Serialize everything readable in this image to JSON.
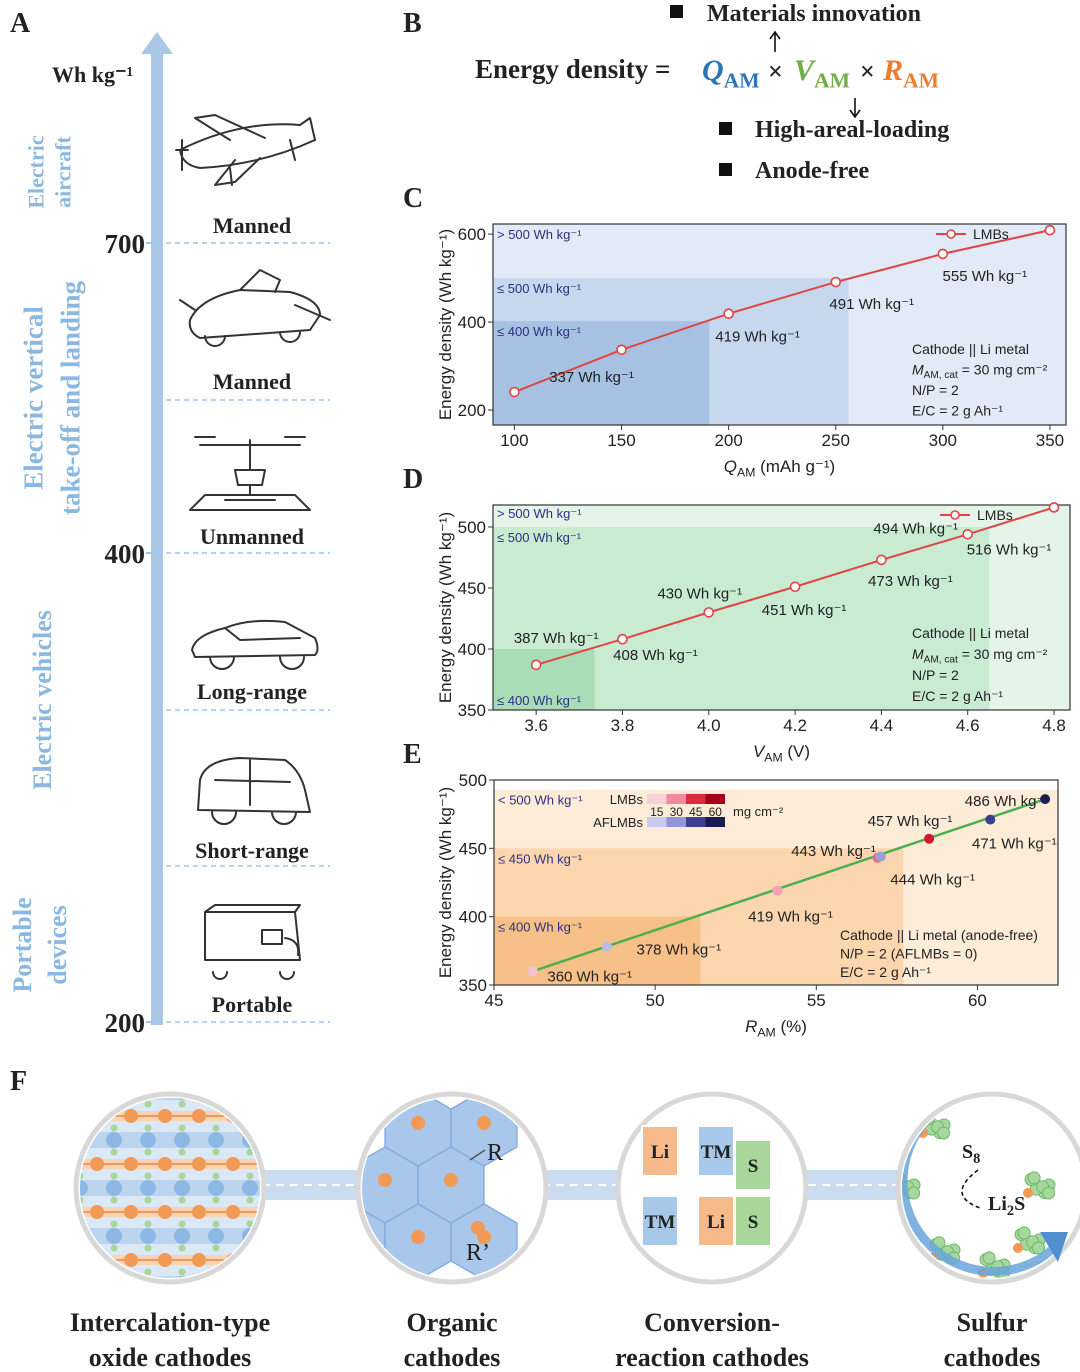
{
  "panel_a": {
    "label": "A",
    "unit": "Wh kg⁻¹",
    "ticks": [
      700,
      400,
      200
    ],
    "groups": [
      [
        "Electric",
        "aircraft"
      ],
      [
        "Electric vertical",
        "take-off and landing"
      ],
      [
        "Electric vehicles"
      ],
      [
        "Portable",
        "devices"
      ]
    ],
    "items": [
      "Manned",
      "Manned",
      "Unmanned",
      "Long-range",
      "Short-range",
      "Portable"
    ]
  },
  "panel_b": {
    "label": "B",
    "above": "Materials innovation",
    "lhs": "Energy density =",
    "operator": "×",
    "terms": [
      {
        "symbol": "Q",
        "sub": "AM",
        "color": "#2e75b6"
      },
      {
        "symbol": "V",
        "sub": "AM",
        "color": "#70ad47"
      },
      {
        "symbol": "R",
        "sub": "AM",
        "color": "#ed7d31"
      }
    ],
    "below": [
      "High-areal-loading",
      "Anode-free"
    ]
  },
  "chart_data": [
    {
      "type": "line",
      "panel": "C",
      "x_label": {
        "symbol": "Q",
        "sub": "AM",
        "unit": " (mAh g⁻¹)"
      },
      "y_label": "Energy density (Wh kg⁻¹)",
      "x": [
        100,
        150,
        200,
        250,
        300,
        350
      ],
      "series": [
        {
          "name": "LMBs",
          "color": "#e04545",
          "values": [
            241,
            337,
            419,
            491,
            555,
            609
          ],
          "value_labels": [
            null,
            "337 Wh kg⁻¹",
            "419 Wh kg⁻¹",
            "491 Wh kg⁻¹",
            "555 Wh kg⁻¹",
            null
          ]
        }
      ],
      "xlim": [
        90,
        357.5
      ],
      "xticks": [
        100,
        150,
        200,
        250,
        300,
        350
      ],
      "ylim": [
        166,
        623
      ],
      "yticks": [
        200,
        400,
        600
      ],
      "regions": [
        {
          "label": "> 500 Wh kg⁻¹",
          "color": "#e2eaf7"
        },
        {
          "label": "≤ 500 Wh kg⁻¹",
          "xmax": 256,
          "ymax": 500,
          "color": "#c6d7ee"
        },
        {
          "label": "≤ 400 Wh kg⁻¹",
          "xmax": 191,
          "ymax": 402,
          "color": "#a6c1e2"
        }
      ],
      "legend": "upper right",
      "annotations": [
        "Cathode || Li metal",
        {
          "symbol": "M",
          "sub": "AM, cat",
          "text": " = 30 mg cm⁻²"
        },
        "N/P = 2",
        "E/C = 2 g Ah⁻¹"
      ]
    },
    {
      "type": "line",
      "panel": "D",
      "x_label": {
        "symbol": "V",
        "sub": "AM",
        "unit": " (V)"
      },
      "y_label": "Energy density (Wh kg⁻¹)",
      "x": [
        3.6,
        3.8,
        4.0,
        4.2,
        4.4,
        4.6,
        4.8
      ],
      "series": [
        {
          "name": "LMBs",
          "color": "#e04545",
          "values": [
            387,
            408,
            430,
            451,
            473,
            494,
            516
          ],
          "value_labels": [
            "387 Wh kg⁻¹",
            "408 Wh kg⁻¹",
            "430 Wh kg⁻¹",
            "451 Wh kg⁻¹",
            "473 Wh kg⁻¹",
            "494 Wh kg⁻¹",
            "516 Wh kg⁻¹"
          ]
        }
      ],
      "xlim": [
        3.5,
        4.837
      ],
      "xticks": [
        {
          "value": 3.6,
          "label": "3.6"
        },
        {
          "value": 3.8,
          "label": "3.8"
        },
        {
          "value": 4.0,
          "label": "4.0"
        },
        {
          "value": 4.2,
          "label": "4.2"
        },
        {
          "value": 4.4,
          "label": "4.4"
        },
        {
          "value": 4.6,
          "label": "4.6"
        },
        {
          "value": 4.8,
          "label": "4.8"
        }
      ],
      "ylim": [
        350,
        518
      ],
      "yticks": [
        350,
        400,
        450,
        500
      ],
      "regions": [
        {
          "label": "> 500 Wh kg⁻¹",
          "color": "#e4f4e8"
        },
        {
          "label": "≤ 500 Wh kg⁻¹",
          "xmax": 4.65,
          "ymax": 500,
          "color": "#c8ebd2"
        },
        {
          "label": "≤ 400 Wh kg⁻¹",
          "xmax": 3.735,
          "ymax": 400,
          "color": "#a8ddb7"
        }
      ],
      "legend": "upper right",
      "annotations": [
        "Cathode || Li metal",
        {
          "symbol": "M",
          "sub": "AM, cat",
          "text": " = 30 mg cm⁻²"
        },
        "N/P = 2",
        "E/C = 2 g Ah⁻¹"
      ]
    },
    {
      "type": "scatter",
      "panel": "E",
      "x_label": {
        "symbol": "R",
        "sub": "AM",
        "unit": " (%)"
      },
      "y_label": "Energy density (Wh kg⁻¹)",
      "series": [
        {
          "name": "LMBs",
          "x": [
            46.2,
            53.8,
            56.9,
            58.5
          ],
          "values": [
            360,
            419,
            443,
            457
          ],
          "colors": [
            "#f6c3cf",
            "#f3a3b4",
            "#ea6f86",
            "#d4172f"
          ],
          "scale_colors": [
            "#f8d0d8",
            "#f08a9c",
            "#e0283f",
            "#a3001a"
          ],
          "value_labels": [
            "360 Wh kg⁻¹",
            "419 Wh kg⁻¹",
            "443 Wh kg⁻¹",
            "457 Wh kg⁻¹"
          ]
        },
        {
          "name": "AFLMBs",
          "x": [
            48.5,
            57.0,
            60.4,
            62.1
          ],
          "values": [
            378,
            444,
            471,
            486
          ],
          "colors": [
            "#b9bde6",
            "#9a9fd8",
            "#3b3f8f",
            "#1c1f5a"
          ],
          "scale_colors": [
            "#c8cbee",
            "#8f95d6",
            "#3c418f",
            "#191c52"
          ],
          "value_labels": [
            "378 Wh kg⁻¹",
            "444 Wh kg⁻¹",
            "471 Wh kg⁻¹",
            "486 Wh kg⁻¹"
          ]
        }
      ],
      "trend": {
        "color": "#4caf50",
        "x": [
          46.2,
          62.1
        ],
        "values": [
          360,
          486
        ]
      },
      "xlim": [
        45,
        62.5
      ],
      "xticks": [
        45,
        50,
        55,
        60
      ],
      "ylim": [
        350,
        500
      ],
      "yticks": [
        350,
        400,
        450,
        500
      ],
      "regions": [
        {
          "label": "< 500 Wh kg⁻¹",
          "ymax": 493,
          "color": "#fdecd8"
        },
        {
          "label": "≤ 450 Wh kg⁻¹",
          "xmax": 57.7,
          "ymax": 450,
          "color": "#fbd6ae"
        },
        {
          "label": "≤ 400 Wh kg⁻¹",
          "xmax": 51.4,
          "ymax": 400,
          "color": "#f8c089"
        }
      ],
      "legend": {
        "loadings": [
          15,
          30,
          45,
          60
        ],
        "unit": "mg cm⁻²"
      },
      "annotations": [
        "Cathode || Li metal (anode-free)",
        "N/P = 2 (AFLMBs = 0)",
        "E/C = 2 g Ah⁻¹"
      ]
    }
  ],
  "panel_f": {
    "label": "F",
    "items": [
      {
        "caption": [
          "Intercalation-type",
          "oxide cathodes"
        ]
      },
      {
        "caption": [
          "Organic",
          "cathodes"
        ],
        "labels": [
          "R",
          "R’"
        ]
      },
      {
        "caption": [
          "Conversion-",
          "reaction cathodes"
        ],
        "labels": [
          "Li",
          "TM",
          "S",
          "TM",
          "Li",
          "S"
        ]
      },
      {
        "caption": [
          "Sulfur",
          "cathodes"
        ],
        "formulas": [
          [
            "S",
            "8"
          ],
          [
            "Li",
            "2",
            "S"
          ]
        ]
      }
    ]
  }
}
